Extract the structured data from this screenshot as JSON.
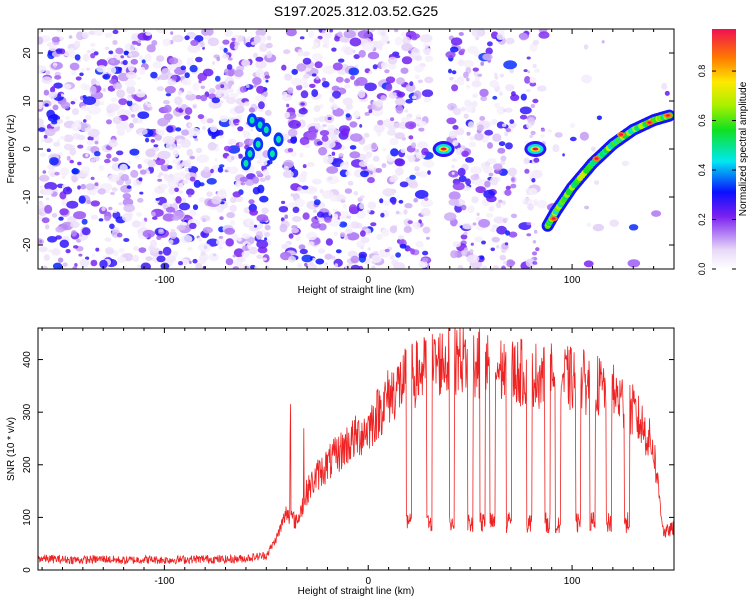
{
  "title": "S197.2025.312.03.52.G25",
  "chart_data": [
    {
      "type": "heatmap",
      "xlabel": "Height of straight line (km)",
      "ylabel": "Frequency (Hz)",
      "xlim": [
        -162,
        150
      ],
      "ylim": [
        -25,
        25
      ],
      "xticks": [
        -100,
        0,
        100
      ],
      "yticks": [
        -20,
        -10,
        0,
        10,
        20
      ],
      "colorbar": {
        "label": "Normalized spectral amplitude",
        "range": [
          0,
          0.97
        ],
        "ticks": [
          "0.0",
          "0.2",
          "0.4",
          "0.6",
          "0.8"
        ]
      },
      "gaps_km": [
        [
          -48,
          -42
        ],
        [
          30,
          40
        ],
        [
          72,
          76
        ],
        [
          83,
          85
        ]
      ],
      "features": [
        {
          "name": "high-altitude streak",
          "x": [
            88,
            92,
            100,
            110,
            120,
            130,
            140,
            148
          ],
          "freq": [
            -16,
            -13,
            -8,
            -3,
            1,
            4,
            6,
            7
          ],
          "amplitude": 0.9
        },
        {
          "name": "tone blob 1",
          "x": 37,
          "freq": 0,
          "amplitude": 0.95
        },
        {
          "name": "tone blob 2",
          "x": 82,
          "freq": 0,
          "amplitude": 0.95
        },
        {
          "name": "cluster near -55 km",
          "x": -55,
          "freq": 4,
          "amplitude": 0.5
        }
      ]
    },
    {
      "type": "line",
      "xlabel": "Height of straight line (km)",
      "ylabel": "SNR (10 * v/v)",
      "xlim": [
        -162,
        150
      ],
      "ylim": [
        0,
        460
      ],
      "xticks": [
        -100,
        0,
        100
      ],
      "yticks": [
        0,
        100,
        200,
        300,
        400
      ],
      "series": [
        {
          "name": "SNR",
          "color": "#ee2222",
          "x": [
            -162,
            -150,
            -140,
            -130,
            -120,
            -110,
            -100,
            -90,
            -80,
            -70,
            -60,
            -50,
            -45,
            -40,
            -35,
            -30,
            -25,
            -20,
            -15,
            -10,
            -5,
            0,
            5,
            10,
            15,
            20,
            25,
            30,
            35,
            40,
            45,
            50,
            55,
            60,
            65,
            70,
            75,
            80,
            85,
            90,
            95,
            100,
            105,
            110,
            115,
            120,
            125,
            130,
            135,
            140,
            145,
            150
          ],
          "values": [
            22,
            20,
            19,
            21,
            18,
            20,
            19,
            20,
            21,
            20,
            22,
            28,
            60,
            110,
            90,
            150,
            180,
            200,
            220,
            240,
            255,
            270,
            300,
            330,
            350,
            365,
            375,
            385,
            395,
            400,
            405,
            398,
            390,
            385,
            380,
            378,
            375,
            372,
            370,
            368,
            365,
            362,
            358,
            352,
            345,
            335,
            320,
            300,
            270,
            230,
            70,
            80
          ]
        }
      ]
    }
  ]
}
